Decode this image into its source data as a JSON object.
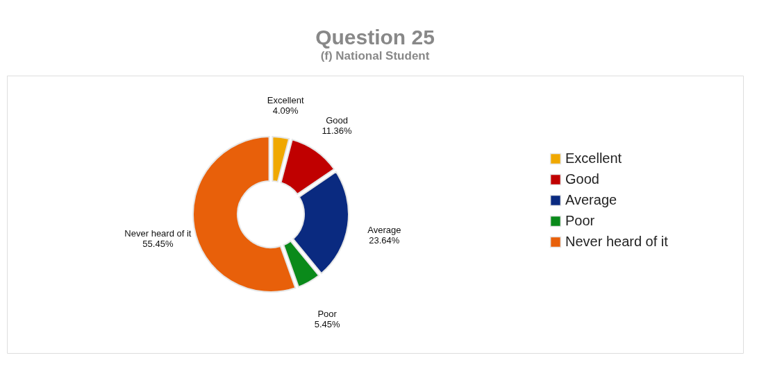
{
  "chart_data": {
    "type": "donut",
    "title": "Question 25",
    "subtitle": "(f) National Student",
    "categories": [
      "Excellent",
      "Good",
      "Average",
      "Poor",
      "Never heard of it"
    ],
    "values": [
      4.09,
      11.36,
      23.64,
      5.45,
      55.45
    ],
    "value_labels": [
      "4.09%",
      "11.36%",
      "23.64%",
      "5.45%",
      "55.45%"
    ],
    "colors": [
      "#f0a800",
      "#c00000",
      "#0a2a80",
      "#0a8a1a",
      "#e8600a"
    ],
    "legend": "right"
  }
}
